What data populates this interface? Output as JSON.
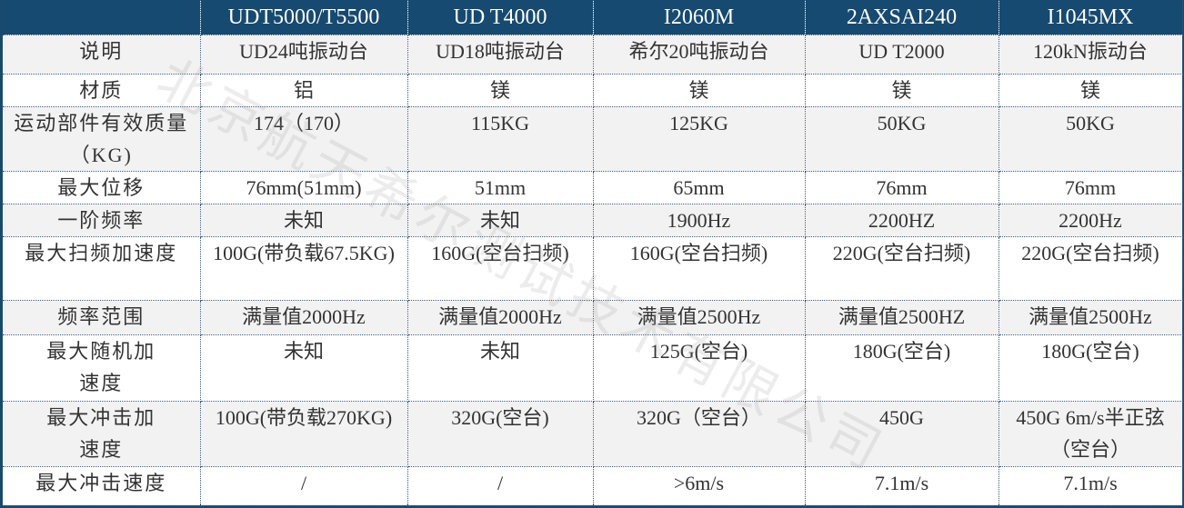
{
  "header": [
    "",
    "UDT5000/T5500",
    "UD T4000",
    "I2060M",
    "2AXSAI240",
    "I1045MX"
  ],
  "rows": [
    {
      "label": "说明",
      "cells": [
        "UD24吨振动台",
        "UD18吨振动台",
        "希尔20吨振动台",
        "UD T2000",
        "120kN振动台"
      ]
    },
    {
      "label": "材质",
      "cells": [
        "铝",
        "镁",
        "镁",
        "镁",
        "镁"
      ]
    },
    {
      "label": "运动部件有效质量（KG)",
      "cells": [
        "174（170）",
        "115KG",
        "125KG",
        "50KG",
        "50KG"
      ]
    },
    {
      "label": "最大位移",
      "cells": [
        "76mm(51mm)",
        "51mm",
        "65mm",
        "76mm",
        "76mm"
      ]
    },
    {
      "label": "一阶频率",
      "cells": [
        "未知",
        "未知",
        "1900Hz",
        "2200HZ",
        "2200Hz"
      ]
    },
    {
      "label": "最大扫频加速度",
      "cells": [
        "100G(带负载67.5KG)",
        "160G(空台扫频)",
        "160G(空台扫频)",
        "220G(空台扫频)",
        "220G(空台扫频)"
      ]
    },
    {
      "label": "频率范围",
      "cells": [
        "满量值2000Hz",
        "满量值2000Hz",
        "满量值2500Hz",
        "满量值2500HZ",
        "满量值2500Hz"
      ]
    },
    {
      "label": "最大随机加速度",
      "cells": [
        "未知",
        "未知",
        "125G(空台)",
        "180G(空台)",
        "180G(空台)"
      ]
    },
    {
      "label": "最大冲击加速度",
      "cells": [
        "100G(带负载270KG)",
        "320G(空台)",
        "320G（空台）",
        "450G",
        "450G 6m/s半正弦（空台）"
      ]
    },
    {
      "label": "最大冲击速度",
      "cells": [
        "/",
        "/",
        ">6m/s",
        "7.1m/s",
        "7.1m/s"
      ]
    }
  ],
  "watermark": "北京航天希尔测试技术有限公司",
  "colors": {
    "header_bg": "#164a70",
    "row_alt": "#f2f2f2",
    "border": "#174a6e"
  }
}
